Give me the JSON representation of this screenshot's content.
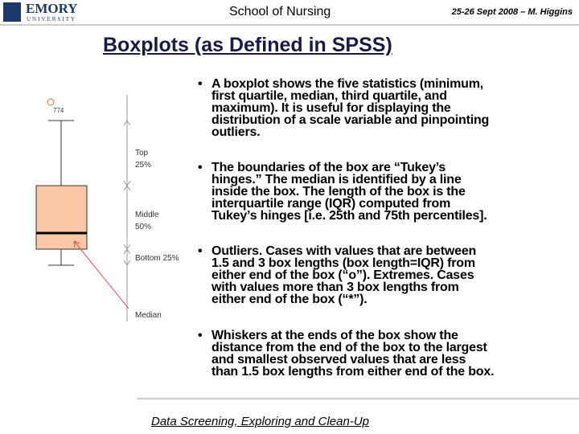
{
  "header": {
    "logo_name": "EMORY",
    "logo_sub": "UNIVERSITY",
    "center": "School of Nursing",
    "right": "25-26 Sept 2008 – M. Higgins"
  },
  "title": "Boxplots (as Defined in SPSS)",
  "diagram": {
    "outlier_label": "774",
    "top": [
      "Top",
      "25%"
    ],
    "middle": [
      "Middle",
      "50%"
    ],
    "bottom": "Bottom 25%",
    "median": "Median"
  },
  "bullets": [
    [
      "A boxplot shows the five statistics (minimum,",
      "first quartile, median, third quartile, and",
      "maximum). It is useful for displaying the",
      "distribution of a scale variable and pinpointing",
      "outliers."
    ],
    [
      "The boundaries of the box are “Tukey’s",
      "hinges.” The median is identified by a line",
      "inside the box. The length of the box is the",
      "interquartile range (IQR) computed from",
      "Tukey’s hinges [i.e. 25th and 75th percentiles]."
    ],
    [
      "Outliers. Cases with values that are between",
      "1.5 and 3 box lengths (box length=IQR) from",
      "either end of the box (“o”). Extremes. Cases",
      "with values more than 3 box lengths from",
      "either end of the box (“*”)."
    ],
    [
      "Whiskers at the ends of the box show the",
      "distance from the end of the box to the largest",
      "and smallest observed values that are less",
      "than 1.5 box lengths from either end of the box."
    ]
  ],
  "footer": "Data Screening, Exploring and Clean-Up"
}
